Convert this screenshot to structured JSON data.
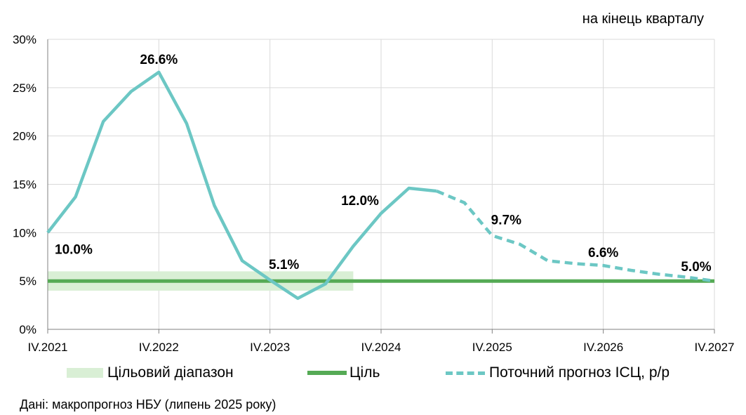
{
  "unit_note": "на кінець кварталу",
  "source": "Дані: макропрогноз НБУ (липень 2025 року)",
  "legend": {
    "band": "Цільовий діапазон",
    "target": "Ціль",
    "forecast": "Поточний прогноз ІСЦ, р/р"
  },
  "colors": {
    "cpi": "#6cc7c4",
    "target": "#55aa55",
    "band": "#d9efd5",
    "grid": "#d9d9d9",
    "axis": "#808080"
  },
  "chart_data": {
    "type": "line",
    "title": "",
    "xlabel": "",
    "ylabel": "",
    "ylim": [
      0,
      30
    ],
    "yticks": [
      "0%",
      "5%",
      "10%",
      "15%",
      "20%",
      "25%",
      "30%"
    ],
    "x_tick_labels": [
      "IV.2021",
      "IV.2022",
      "IV.2023",
      "IV.2024",
      "IV.2025",
      "IV.2026",
      "IV.2027"
    ],
    "x_range_quarters": [
      "IV.2021",
      "IV.2027"
    ],
    "grid": "vertical-and-horizontal",
    "series": [
      {
        "name": "",
        "style": "solid",
        "x": [
          "IV.2021",
          "I.2022",
          "II.2022",
          "III.2022",
          "IV.2022",
          "I.2023",
          "II.2023",
          "III.2023",
          "IV.2023",
          "I.2024",
          "II.2024",
          "III.2024",
          "IV.2024",
          "I.2025",
          "II.2025"
        ],
        "values": [
          10.0,
          13.7,
          21.5,
          24.6,
          26.6,
          21.3,
          12.8,
          7.1,
          5.1,
          3.2,
          4.7,
          8.6,
          12.0,
          14.6,
          14.3
        ]
      },
      {
        "name": "Поточний прогноз ІСЦ, р/р",
        "style": "dashed",
        "x": [
          "II.2025",
          "III.2025",
          "IV.2025",
          "I.2026",
          "II.2026",
          "III.2026",
          "IV.2026",
          "I.2027",
          "II.2027",
          "III.2027",
          "IV.2027"
        ],
        "values": [
          14.3,
          13.1,
          9.7,
          8.8,
          7.1,
          6.8,
          6.6,
          6.1,
          5.7,
          5.4,
          5.0
        ]
      },
      {
        "name": "Ціль",
        "style": "solid",
        "x": [
          "IV.2021",
          "IV.2027"
        ],
        "values": [
          5.0,
          5.0
        ]
      }
    ],
    "band": {
      "name": "Цільовий діапазон",
      "low": 4.0,
      "high": 6.0,
      "x": [
        "IV.2021",
        "III.2024"
      ]
    },
    "data_labels": [
      {
        "x": "IV.2021",
        "value": 10.0,
        "text": "10.0%",
        "position": "below-right"
      },
      {
        "x": "IV.2022",
        "value": 26.6,
        "text": "26.6%",
        "position": "above"
      },
      {
        "x": "IV.2023",
        "value": 5.1,
        "text": "5.1%",
        "position": "above-right"
      },
      {
        "x": "IV.2024",
        "value": 12.0,
        "text": "12.0%",
        "position": "above-left"
      },
      {
        "x": "IV.2025",
        "value": 9.7,
        "text": "9.7%",
        "position": "above-right"
      },
      {
        "x": "IV.2026",
        "value": 6.6,
        "text": "6.6%",
        "position": "above"
      },
      {
        "x": "IV.2027",
        "value": 5.0,
        "text": "5.0%",
        "position": "above-left"
      }
    ],
    "legend_position": "bottom"
  }
}
